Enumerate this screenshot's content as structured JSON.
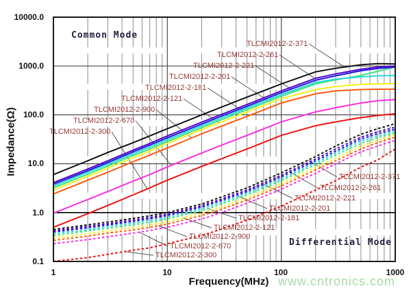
{
  "chart_data": {
    "type": "line",
    "title": "",
    "xlabel": "Frequency(MHz)",
    "ylabel": "Impedance(Ω)",
    "xscale": "log",
    "yscale": "log",
    "xlim": [
      1,
      1000
    ],
    "ylim": [
      0.1,
      10000
    ],
    "grid": true,
    "x_tick_labels": [
      "1",
      "10",
      "100",
      "1000"
    ],
    "y_tick_labels": [
      "10000.0",
      "1000.0",
      "100.0",
      "10.0",
      "1.0",
      "0.1"
    ],
    "annotations": {
      "common": "Common Mode",
      "differential": "Differential Mode"
    },
    "x": [
      1,
      2,
      3,
      5,
      7,
      10,
      20,
      30,
      50,
      100,
      200,
      300,
      500,
      700,
      1000
    ],
    "series": [
      {
        "name": "TLCMI2012-2-371",
        "mode": "common",
        "color": "#121212",
        "dashed": false,
        "values": [
          6,
          11.5,
          17,
          27,
          37,
          52,
          100,
          145,
          230,
          430,
          760,
          900,
          1060,
          1120,
          1100
        ]
      },
      {
        "name": "TLCMI2012-2-261",
        "mode": "common",
        "color": "#5208c8",
        "dashed": false,
        "values": [
          4.1,
          7.8,
          11.5,
          19,
          26,
          37,
          71,
          103,
          163,
          310,
          560,
          690,
          860,
          950,
          1000
        ]
      },
      {
        "name": "TLCMI2012-2-221",
        "mode": "common",
        "color": "#2018dc",
        "dashed": false,
        "values": [
          3.8,
          7.2,
          10.6,
          17.5,
          24,
          34,
          65,
          95,
          150,
          285,
          510,
          630,
          800,
          890,
          950
        ]
      },
      {
        "name": "TLCMI2012-2-201",
        "mode": "common",
        "color": "#2fd8d8",
        "dashed": false,
        "values": [
          3.5,
          6.7,
          9.8,
          16,
          22,
          31,
          60,
          87,
          138,
          260,
          460,
          540,
          600,
          630,
          640
        ]
      },
      {
        "name": "TLCMI2012-2-181",
        "mode": "common",
        "color": "#3ce383",
        "dashed": false,
        "values": [
          3.2,
          6.1,
          9,
          14.7,
          20,
          28.5,
          55,
          80,
          127,
          240,
          430,
          520,
          640,
          780,
          950
        ]
      },
      {
        "name": "TLCMI2012-2-121",
        "mode": "common",
        "color": "#f6ef1a",
        "dashed": false,
        "values": [
          2.9,
          5.5,
          8.1,
          13.2,
          18,
          26,
          50,
          72,
          114,
          215,
          330,
          380,
          420,
          430,
          435
        ]
      },
      {
        "name": "TLCMI2012-2-900",
        "mode": "common",
        "color": "#ff5a0d",
        "dashed": false,
        "values": [
          2.4,
          4.6,
          6.7,
          11,
          15,
          21,
          41,
          59,
          93,
          175,
          270,
          310,
          330,
          335,
          335
        ]
      },
      {
        "name": "TLCMI2012-2-670",
        "mode": "common",
        "color": "#fb2ee3",
        "dashed": false,
        "values": [
          0.97,
          1.85,
          2.7,
          4.4,
          6,
          8.6,
          16.5,
          24,
          38,
          72,
          115,
          140,
          175,
          195,
          206
        ]
      },
      {
        "name": "TLCMI2012-2-300",
        "mode": "common",
        "color": "#ee1111",
        "dashed": false,
        "values": [
          0.5,
          0.95,
          1.4,
          2.3,
          3.2,
          4.6,
          8.8,
          12.7,
          20,
          38,
          60,
          72,
          88,
          97,
          105
        ]
      },
      {
        "name": "TLCMI2012-2-371",
        "mode": "differential",
        "color": "#121212",
        "dashed": true,
        "values": [
          0.45,
          0.56,
          0.64,
          0.76,
          0.86,
          1.0,
          1.5,
          2.1,
          3.2,
          6.5,
          14,
          23,
          40,
          52,
          66
        ]
      },
      {
        "name": "TLCMI2012-2-261",
        "mode": "differential",
        "color": "#5208c8",
        "dashed": true,
        "values": [
          0.42,
          0.52,
          0.59,
          0.7,
          0.79,
          0.92,
          1.38,
          1.9,
          2.9,
          5.8,
          12.5,
          20,
          35,
          45,
          56
        ]
      },
      {
        "name": "TLCMI2012-2-221",
        "mode": "differential",
        "color": "#2018dc",
        "dashed": true,
        "values": [
          0.4,
          0.49,
          0.56,
          0.66,
          0.75,
          0.87,
          1.3,
          1.78,
          2.7,
          5.4,
          11.5,
          18,
          32,
          41,
          51
        ]
      },
      {
        "name": "TLCMI2012-2-201",
        "mode": "differential",
        "color": "#2fd8d8",
        "dashed": true,
        "values": [
          0.37,
          0.45,
          0.52,
          0.61,
          0.69,
          0.8,
          1.2,
          1.63,
          2.5,
          4.9,
          10.5,
          16.5,
          29,
          37,
          47
        ]
      },
      {
        "name": "TLCMI2012-2-181",
        "mode": "differential",
        "color": "#3ce383",
        "dashed": true,
        "values": [
          0.34,
          0.42,
          0.48,
          0.56,
          0.63,
          0.74,
          1.1,
          1.5,
          2.3,
          4.5,
          9.6,
          15,
          26,
          34,
          43
        ]
      },
      {
        "name": "TLCMI2012-2-121",
        "mode": "differential",
        "color": "#f6ef1a",
        "dashed": true,
        "values": [
          0.3,
          0.37,
          0.42,
          0.49,
          0.56,
          0.65,
          0.97,
          1.32,
          2.0,
          3.9,
          8.4,
          13,
          23,
          30,
          39
        ]
      },
      {
        "name": "TLCMI2012-2-900",
        "mode": "differential",
        "color": "#ff5a0d",
        "dashed": true,
        "values": [
          0.27,
          0.33,
          0.38,
          0.44,
          0.5,
          0.58,
          0.87,
          1.18,
          1.8,
          3.5,
          7.5,
          11.5,
          20,
          27,
          35
        ]
      },
      {
        "name": "TLCMI2012-2-670",
        "mode": "differential",
        "color": "#fb2ee3",
        "dashed": true,
        "values": [
          0.23,
          0.28,
          0.32,
          0.38,
          0.43,
          0.5,
          0.74,
          1.0,
          1.55,
          3.0,
          6.4,
          9.9,
          17.5,
          23,
          30
        ]
      },
      {
        "name": "TLCMI2012-2-300",
        "mode": "differential",
        "color": "#ee1111",
        "dashed": true,
        "values": [
          0.1,
          0.12,
          0.14,
          0.17,
          0.19,
          0.23,
          0.34,
          0.46,
          0.7,
          1.35,
          2.9,
          4.5,
          8.5,
          12,
          20
        ]
      }
    ]
  },
  "footer": {
    "watermark": "www.cntronics.com"
  }
}
